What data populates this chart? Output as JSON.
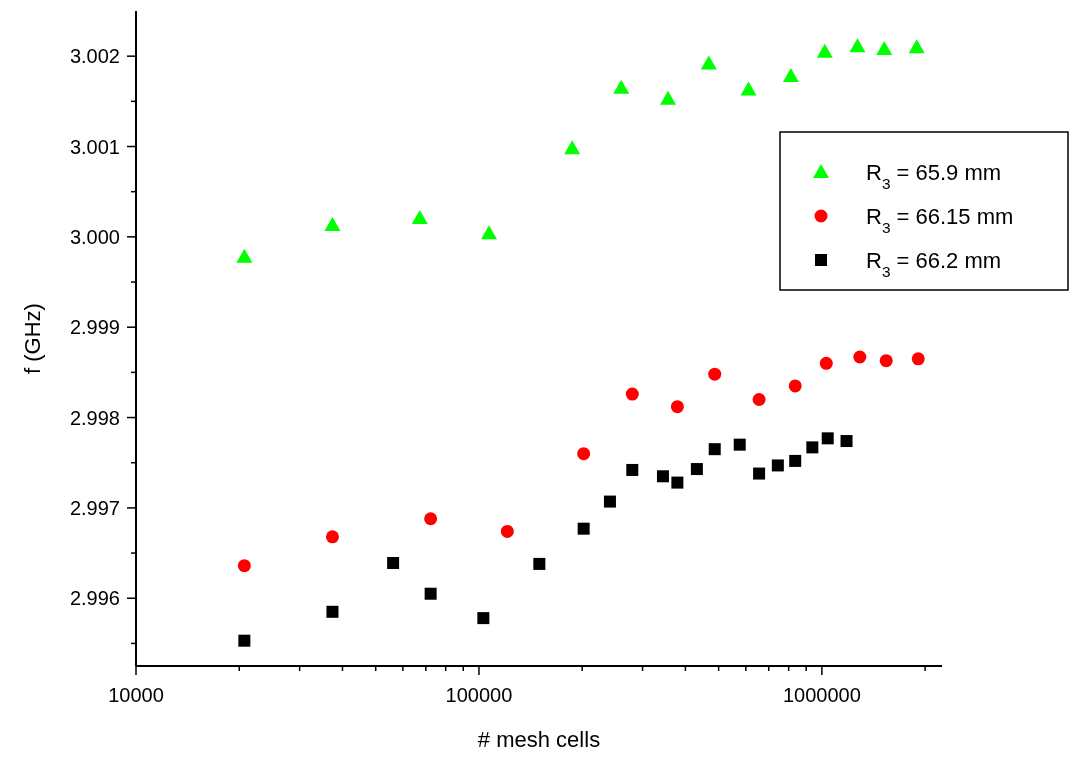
{
  "chart_data": {
    "type": "scatter",
    "xlabel": "# mesh cells",
    "ylabel": "f (GHz)",
    "log": "x",
    "xlim": [
      10000,
      2240000
    ],
    "ylim": [
      2.99525,
      3.0025
    ],
    "xticks": [
      10000,
      {
        "value": 20000,
        "label": null
      },
      {
        "value": 30000,
        "label": null
      },
      {
        "value": 40000,
        "label": null
      },
      {
        "value": 50000,
        "label": null
      },
      {
        "value": 60000,
        "label": null
      },
      {
        "value": 70000,
        "label": null
      },
      {
        "value": 80000,
        "label": null
      },
      {
        "value": 90000,
        "label": null
      },
      100000,
      {
        "value": 200000,
        "label": null
      },
      {
        "value": 300000,
        "label": null
      },
      {
        "value": 400000,
        "label": null
      },
      {
        "value": 500000,
        "label": null
      },
      {
        "value": 600000,
        "label": null
      },
      {
        "value": 700000,
        "label": null
      },
      {
        "value": 800000,
        "label": null
      },
      {
        "value": 900000,
        "label": null
      },
      1000000,
      {
        "value": 2000000,
        "label": null
      }
    ],
    "yticks": [
      {
        "value": 2.9955,
        "label": null
      },
      {
        "value": 2.996,
        "label": "2.996"
      },
      {
        "value": 2.9965,
        "label": null
      },
      {
        "value": 2.997,
        "label": "2.997"
      },
      {
        "value": 2.9975,
        "label": null
      },
      {
        "value": 2.998,
        "label": "2.998"
      },
      {
        "value": 2.9985,
        "label": null
      },
      {
        "value": 2.999,
        "label": "2.999"
      },
      {
        "value": 2.9995,
        "label": null
      },
      {
        "value": 3.0,
        "label": "3.000"
      },
      {
        "value": 3.0005,
        "label": null
      },
      {
        "value": 3.001,
        "label": "3.001"
      },
      {
        "value": 3.0015,
        "label": null
      },
      {
        "value": 3.002,
        "label": "3.002"
      }
    ],
    "grid": false,
    "legend": "top right",
    "series": [
      {
        "name": "R$_{3}$ = 65.9 mm",
        "color": "#00ff00",
        "marker": "triangle",
        "x": [
          20700,
          37400,
          67200,
          107000,
          187000,
          260000,
          356000,
          468000,
          611000,
          812000,
          1020000,
          1270000,
          1520000,
          1890000
        ],
        "values": [
          2.99978,
          3.00013,
          3.00021,
          3.00004,
          3.00098,
          3.00165,
          3.00153,
          3.00192,
          3.00163,
          3.00178,
          3.00205,
          3.00211,
          3.00208,
          3.0021
        ]
      },
      {
        "name": "R$_{3}$ = 66.15 mm",
        "color": "#ff0000",
        "marker": "circle",
        "x": [
          20700,
          37400,
          72300,
          121000,
          202000,
          280000,
          379000,
          487000,
          656000,
          836000,
          1030000,
          1290000,
          1540000,
          1910000
        ],
        "values": [
          2.99636,
          2.99668,
          2.99688,
          2.99674,
          2.9976,
          2.99826,
          2.99812,
          2.99848,
          2.9982,
          2.99835,
          2.9986,
          2.99867,
          2.99863,
          2.99865
        ]
      },
      {
        "name": "R$_{3}$ = 66.2 mm",
        "color": "#000000",
        "marker": "square",
        "x": [
          20700,
          37400,
          56200,
          72300,
          103000,
          150000,
          202000,
          241000,
          280000,
          344000,
          379000,
          432000,
          487000,
          576000,
          656000,
          744000,
          836000,
          938000,
          1040000,
          1180000
        ],
        "values": [
          2.99553,
          2.99585,
          2.99639,
          2.99605,
          2.99578,
          2.99638,
          2.99677,
          2.99707,
          2.99742,
          2.99735,
          2.99728,
          2.99743,
          2.99765,
          2.9977,
          2.99738,
          2.99747,
          2.99752,
          2.99767,
          2.99777,
          2.99774
        ]
      }
    ]
  }
}
